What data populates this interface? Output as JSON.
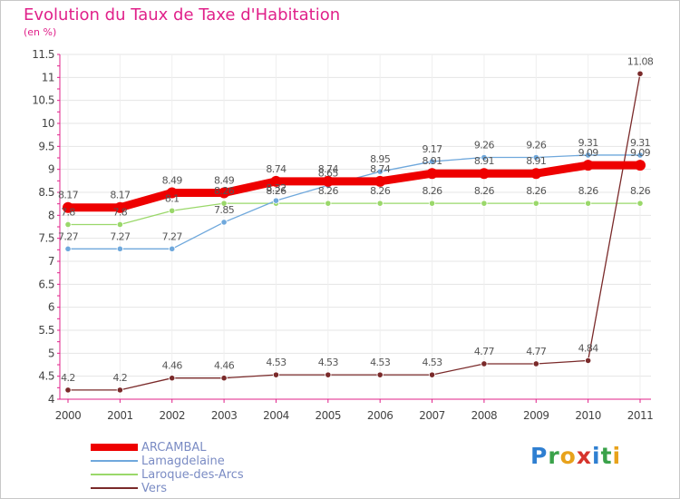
{
  "title": "Evolution du Taux de Taxe d'Habitation",
  "subtitle": "(en %)",
  "logo": {
    "letters": [
      "P",
      "r",
      "o",
      "x",
      "i",
      "t",
      "i"
    ],
    "colors": [
      "#2f7fd1",
      "#3aa24a",
      "#e8a21b",
      "#d6342c",
      "#2f7fd1",
      "#3aa24a",
      "#e8a21b"
    ]
  },
  "chart_data": {
    "type": "line",
    "title": "Evolution du Taux de Taxe d'Habitation",
    "ylabel": "(en %)",
    "x": [
      "2000",
      "2001",
      "2002",
      "2003",
      "2004",
      "2005",
      "2006",
      "2007",
      "2008",
      "2009",
      "2010",
      "2011"
    ],
    "ylim": [
      4,
      11.5
    ],
    "yticks": [
      "4",
      "4.5",
      "5",
      "5.5",
      "6",
      "6.5",
      "7",
      "7.5",
      "8",
      "8.5",
      "9",
      "9.5",
      "10",
      "10.5",
      "11",
      "11.5"
    ],
    "grid": "horizontal",
    "legend_position": "bottom-left",
    "series": [
      {
        "name": "ARCAMBAL",
        "color": "#ee0000",
        "values": [
          8.17,
          8.17,
          8.49,
          8.49,
          8.74,
          8.74,
          8.74,
          8.91,
          8.91,
          8.91,
          9.09,
          9.09
        ],
        "labels": [
          "8.17",
          "8.17",
          "8.49",
          "8.49",
          "8.74",
          "8.74",
          "8.74",
          "8.91",
          "8.91",
          "8.91",
          "9.09",
          "9.09"
        ]
      },
      {
        "name": "Lamagdelaine",
        "color": "#6fa8dc",
        "values": [
          7.27,
          7.27,
          7.27,
          7.85,
          8.32,
          8.65,
          8.95,
          9.17,
          9.26,
          9.26,
          9.31,
          9.31
        ],
        "labels": [
          "7.27",
          "7.27",
          "7.27",
          "7.85",
          "8.32",
          "8.65",
          "8.95",
          "9.17",
          "9.26",
          "9.26",
          "9.31",
          "9.31"
        ]
      },
      {
        "name": "Laroque-des-Arcs",
        "color": "#9ad86a",
        "values": [
          7.8,
          7.8,
          8.1,
          8.26,
          8.26,
          8.26,
          8.26,
          8.26,
          8.26,
          8.26,
          8.26,
          8.26
        ],
        "labels": [
          "7.8",
          "7.8",
          "8.1",
          "8.26",
          "8.26",
          "8.26",
          "8.26",
          "8.26",
          "8.26",
          "8.26",
          "8.26",
          "8.26"
        ]
      },
      {
        "name": "Vers",
        "color": "#7a2a2a",
        "values": [
          4.2,
          4.2,
          4.46,
          4.46,
          4.53,
          4.53,
          4.53,
          4.53,
          4.77,
          4.77,
          4.84,
          11.08
        ],
        "labels": [
          "4.2",
          "4.2",
          "4.46",
          "4.46",
          "4.53",
          "4.53",
          "4.53",
          "4.53",
          "4.77",
          "4.77",
          "4.84",
          "11.08"
        ]
      }
    ]
  }
}
